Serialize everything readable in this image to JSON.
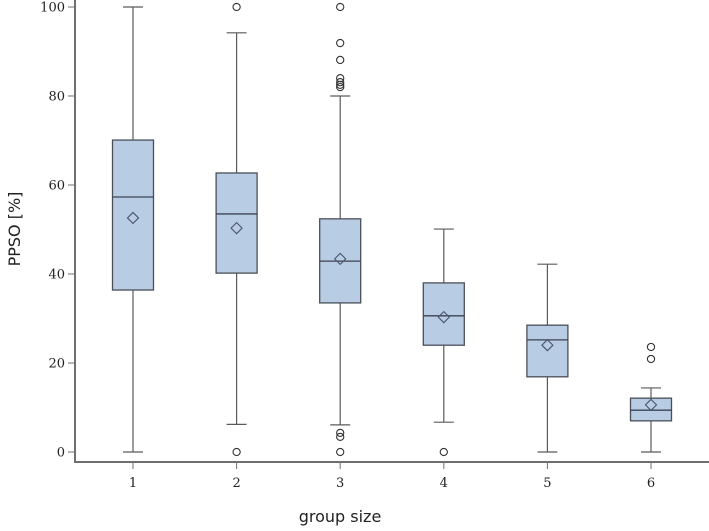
{
  "chart_data": {
    "type": "box",
    "title": "",
    "xlabel": "group size",
    "ylabel": "PPSO [%]",
    "ylim": [
      0,
      100
    ],
    "yticks": [
      0,
      20,
      40,
      60,
      80,
      100
    ],
    "categories": [
      "1",
      "2",
      "3",
      "4",
      "5",
      "6"
    ],
    "grid": false,
    "legend": null,
    "box_color": "#b8cce4",
    "series": [
      {
        "group": "1",
        "whisker_low": 0,
        "q1": 36.4,
        "median": 57.3,
        "mean": 52.6,
        "q3": 70.1,
        "whisker_high": 100,
        "outliers": []
      },
      {
        "group": "2",
        "whisker_low": 6.2,
        "q1": 40.2,
        "median": 53.5,
        "mean": 50.3,
        "q3": 62.7,
        "whisker_high": 94.2,
        "outliers": [
          0,
          100
        ]
      },
      {
        "group": "3",
        "whisker_low": 6.1,
        "q1": 33.5,
        "median": 42.9,
        "mean": 43.4,
        "q3": 52.4,
        "whisker_high": 80.0,
        "outliers": [
          0,
          3.4,
          4.3,
          82.0,
          82.5,
          83.1,
          84.0,
          88.1,
          91.9,
          100
        ]
      },
      {
        "group": "4",
        "whisker_low": 6.7,
        "q1": 24.0,
        "median": 30.6,
        "mean": 30.3,
        "q3": 38.0,
        "whisker_high": 50.1,
        "outliers": [
          0
        ]
      },
      {
        "group": "5",
        "whisker_low": 0,
        "q1": 16.9,
        "median": 25.2,
        "mean": 24.0,
        "q3": 28.5,
        "whisker_high": 42.2,
        "outliers": []
      },
      {
        "group": "6",
        "whisker_low": 0,
        "q1": 7.0,
        "median": 9.4,
        "mean": 10.6,
        "q3": 12.1,
        "whisker_high": 14.4,
        "outliers": [
          20.9,
          23.6
        ]
      }
    ]
  },
  "axes": {
    "x_title": "group size",
    "y_title": "PPSO [%]"
  }
}
